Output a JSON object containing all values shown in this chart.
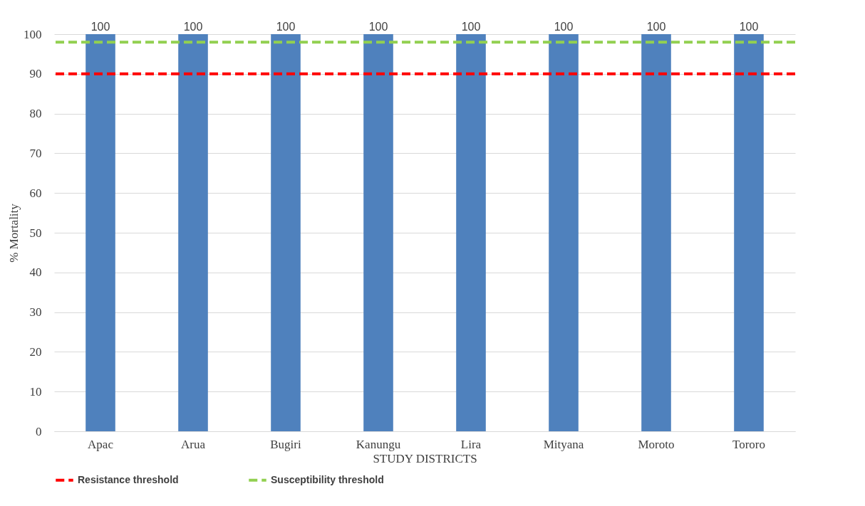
{
  "chart_data": {
    "type": "bar",
    "xlabel": "STUDY DISTRICTS",
    "ylabel": "% Mortality",
    "categories": [
      "Apac",
      "Arua",
      "Bugiri",
      "Kanungu",
      "Lira",
      "Mityana",
      "Moroto",
      "Tororo"
    ],
    "values": [
      100,
      100,
      100,
      100,
      100,
      100,
      100,
      100
    ],
    "color": "#4f81bd",
    "ylim": [
      0,
      100
    ],
    "yticks": [
      0,
      10,
      20,
      30,
      40,
      50,
      60,
      70,
      80,
      90,
      100
    ],
    "grid": "y",
    "data_labels": true,
    "legend": "bottom",
    "ref_lines": [
      {
        "axis": "y",
        "value": 90,
        "label": "Resistance threshold",
        "color": "#ff0000",
        "line_style": "dashed"
      },
      {
        "axis": "y",
        "value": 98,
        "label": "Susceptibility threshold",
        "color": "#92d050",
        "line_style": "dashed"
      }
    ]
  }
}
